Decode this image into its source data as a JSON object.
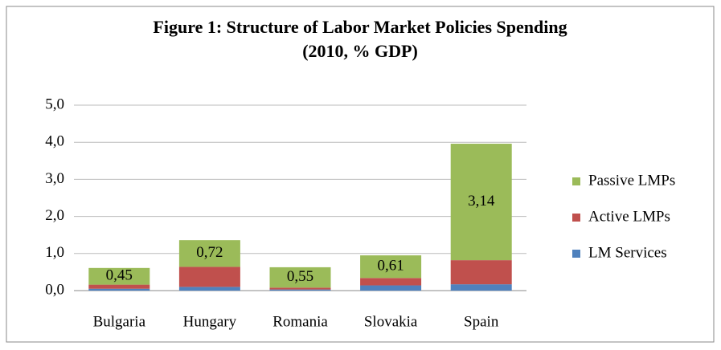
{
  "chart_data": {
    "type": "stacked_bar",
    "title": "Figure 1: Structure of Labor Market Policies Spending",
    "subtitle": "(2010, % GDP)",
    "categories": [
      "Bulgaria",
      "Hungary",
      "Romania",
      "Slovakia",
      "Spain"
    ],
    "series": [
      {
        "name": "LM Services",
        "color": "#4f81bd",
        "values": [
          0.05,
          0.1,
          0.03,
          0.14,
          0.17
        ]
      },
      {
        "name": "Active LMPs",
        "color": "#c0504d",
        "values": [
          0.11,
          0.54,
          0.05,
          0.2,
          0.65
        ]
      },
      {
        "name": "Passive LMPs",
        "color": "#9bbb59",
        "values": [
          0.45,
          0.72,
          0.55,
          0.61,
          3.14
        ],
        "value_labels": [
          "0,45",
          "0,72",
          "0,55",
          "0,61",
          "3,14"
        ]
      }
    ],
    "ylim": [
      0,
      5
    ],
    "yticks": [
      {
        "value": 0,
        "label": "0,0"
      },
      {
        "value": 1,
        "label": "1,0"
      },
      {
        "value": 2,
        "label": "2,0"
      },
      {
        "value": 3,
        "label": "3,0"
      },
      {
        "value": 4,
        "label": "4,0"
      },
      {
        "value": 5,
        "label": "5,0"
      }
    ],
    "grid": true,
    "legend": "right"
  }
}
